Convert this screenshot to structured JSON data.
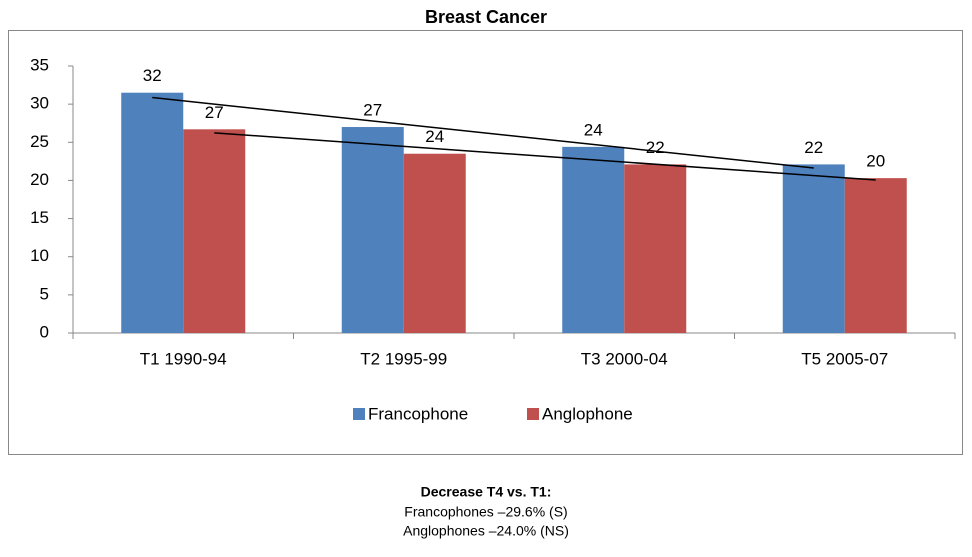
{
  "chart_data": {
    "type": "bar",
    "title": "Breast Cancer",
    "categories": [
      "T1 1990-94",
      "T2 1995-99",
      "T3 2000-04",
      "T5 2005-07"
    ],
    "series": [
      {
        "name": "Francophone",
        "color": "#4f81bd",
        "values": [
          31.5,
          27.0,
          24.4,
          22.1
        ],
        "value_labels": [
          "32",
          "27",
          "24",
          "22"
        ]
      },
      {
        "name": "Anglophone",
        "color": "#c0504d",
        "values": [
          26.7,
          23.5,
          22.1,
          20.3
        ],
        "value_labels": [
          "27",
          "24",
          "22",
          "20"
        ]
      }
    ],
    "ylim": [
      0,
      35
    ],
    "yticks": [
      0,
      5,
      10,
      15,
      20,
      25,
      30,
      35
    ],
    "grid": false,
    "legend": "bottom",
    "trendline": true
  },
  "footer": {
    "heading": "Decrease T4 vs. T1:",
    "lines": [
      "Francophones –29.6% (S)",
      "Anglophones –24.0% (NS)"
    ]
  }
}
